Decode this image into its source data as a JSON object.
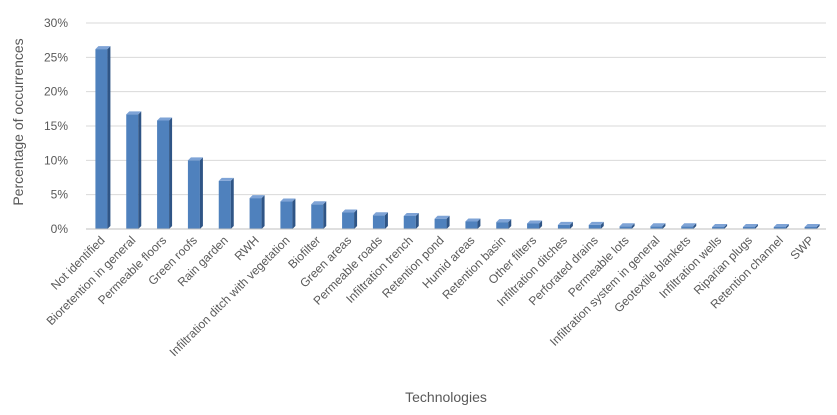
{
  "chart_data": {
    "type": "bar",
    "title": "",
    "xlabel": "Technologies",
    "ylabel": "Percentage of occurrences",
    "ylim": [
      0,
      30
    ],
    "y_ticks": [
      "0%",
      "5%",
      "10%",
      "15%",
      "20%",
      "25%",
      "30%"
    ],
    "grid": true,
    "legend": "none",
    "bar_color": "#4f81bd",
    "bar_side_color": "#2f5586",
    "bar_top_color": "#7ea3d6",
    "categories": [
      "Not identified",
      "Bioretention in general",
      "Permeable floors",
      "Green roofs",
      "Rain garden",
      "RWH",
      "Infiltration ditch with vegetation",
      "Biofilter",
      "Green areas",
      "Permeable roads",
      "Infiltration trench",
      "Retention pond",
      "Humid areas",
      "Retention basin",
      "Other filters",
      "Infiltration ditches",
      "Perforated drains",
      "Permeable lots",
      "Infiltration system in general",
      "Geotextile blankets",
      "Infiltration wells",
      "Riparian plugs",
      "Retention channel",
      "SWP"
    ],
    "values": [
      26.2,
      16.7,
      15.8,
      10.0,
      7.0,
      4.5,
      4.0,
      3.6,
      2.4,
      2.0,
      1.9,
      1.5,
      1.1,
      1.0,
      0.8,
      0.6,
      0.6,
      0.4,
      0.4,
      0.4,
      0.3,
      0.3,
      0.3,
      0.3
    ]
  }
}
